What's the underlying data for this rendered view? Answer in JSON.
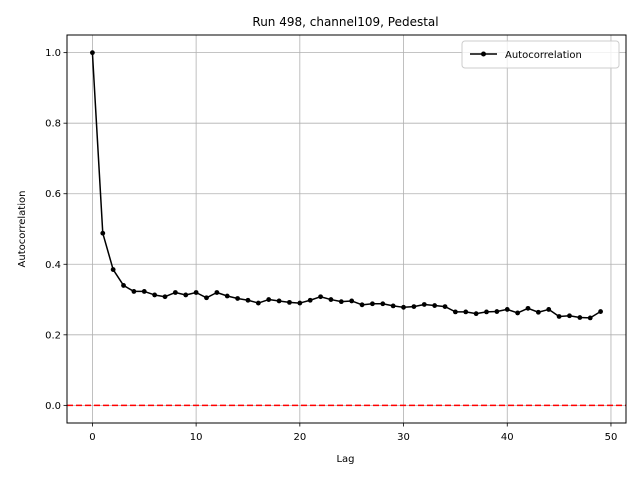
{
  "chart_data": {
    "type": "line",
    "title": "Run 498, channel109, Pedestal",
    "xlabel": "Lag",
    "ylabel": "Autocorrelation",
    "xlim": [
      -2.45,
      51.45
    ],
    "ylim": [
      -0.05,
      1.05
    ],
    "xticks": [
      0,
      10,
      20,
      30,
      40,
      50
    ],
    "yticks": [
      0.0,
      0.2,
      0.4,
      0.6,
      0.8,
      1.0
    ],
    "xtick_labels": [
      "0",
      "10",
      "20",
      "30",
      "40",
      "50"
    ],
    "ytick_labels": [
      "0.0",
      "0.2",
      "0.4",
      "0.6",
      "0.8",
      "1.0"
    ],
    "grid": true,
    "legend": {
      "position": "top-right"
    },
    "series": [
      {
        "name": "Autocorrelation",
        "color": "#000000",
        "marker": "circle",
        "x": [
          0,
          1,
          2,
          3,
          4,
          5,
          6,
          7,
          8,
          9,
          10,
          11,
          12,
          13,
          14,
          15,
          16,
          17,
          18,
          19,
          20,
          21,
          22,
          23,
          24,
          25,
          26,
          27,
          28,
          29,
          30,
          31,
          32,
          33,
          34,
          35,
          36,
          37,
          38,
          39,
          40,
          41,
          42,
          43,
          44,
          45,
          46,
          47,
          48,
          49
        ],
        "values": [
          1.0,
          0.488,
          0.385,
          0.34,
          0.323,
          0.323,
          0.313,
          0.308,
          0.32,
          0.313,
          0.32,
          0.305,
          0.32,
          0.31,
          0.303,
          0.298,
          0.29,
          0.3,
          0.296,
          0.292,
          0.29,
          0.298,
          0.308,
          0.3,
          0.294,
          0.296,
          0.285,
          0.288,
          0.288,
          0.282,
          0.278,
          0.28,
          0.286,
          0.283,
          0.28,
          0.265,
          0.265,
          0.26,
          0.265,
          0.266,
          0.272,
          0.262,
          0.275,
          0.264,
          0.272,
          0.252,
          0.254,
          0.249,
          0.248,
          0.266
        ]
      }
    ],
    "reference_line": {
      "y": 0.0,
      "color": "#ff0000",
      "style": "dashed"
    }
  }
}
